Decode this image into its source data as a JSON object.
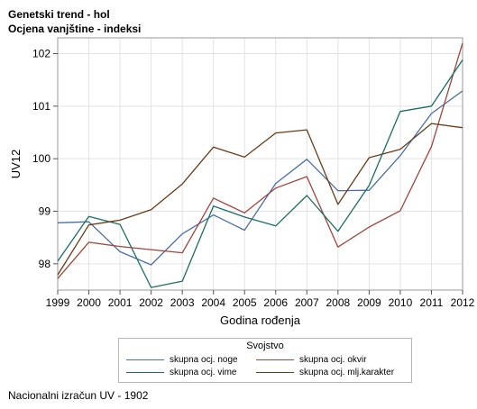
{
  "header": {
    "title": "Genetski trend - hol",
    "subtitle": "Ocjena vanjštine - indeksi"
  },
  "footer": {
    "note": "Nacionalni izračun UV - 1902"
  },
  "chart_data": {
    "type": "line",
    "xlabel": "Godina rođenja",
    "ylabel": "UV12",
    "x": [
      1999,
      2000,
      2001,
      2002,
      2003,
      2004,
      2005,
      2006,
      2007,
      2008,
      2009,
      2010,
      2011,
      2012
    ],
    "x_ticks": [
      "1999",
      "2000",
      "2001",
      "2002",
      "2003",
      "2004",
      "2005",
      "2006",
      "2007",
      "2008",
      "2009",
      "2010",
      "2011",
      "2012"
    ],
    "y_ticks": [
      "98",
      "99",
      "100",
      "101",
      "102"
    ],
    "xlim": [
      1999,
      2012
    ],
    "ylim": [
      97.5,
      102.3
    ],
    "grid": true,
    "legend": {
      "title": "Svojstvo",
      "placement": "bottom"
    },
    "series": [
      {
        "name": "skupna ocj. noge",
        "color": "#4a6fa5",
        "values": [
          98.78,
          98.8,
          98.23,
          97.98,
          98.57,
          98.93,
          98.64,
          99.53,
          99.99,
          99.39,
          99.4,
          100.06,
          100.86,
          101.29
        ]
      },
      {
        "name": "skupna ocj. okvir",
        "color": "#a0453a",
        "values": [
          97.72,
          98.41,
          98.33,
          98.27,
          98.21,
          99.25,
          98.97,
          99.44,
          99.66,
          98.32,
          98.7,
          99.01,
          100.23,
          102.2
        ]
      },
      {
        "name": "skupna ocj. vime",
        "color": "#1a6e63",
        "values": [
          98.05,
          98.9,
          98.75,
          97.55,
          97.67,
          99.1,
          98.89,
          98.72,
          99.3,
          98.62,
          99.49,
          100.9,
          101.0,
          101.88
        ]
      },
      {
        "name": "skupna ocj. mlj.karakter",
        "color": "#6b3c17",
        "values": [
          97.79,
          98.74,
          98.83,
          99.03,
          99.52,
          100.22,
          100.03,
          100.49,
          100.55,
          99.13,
          100.02,
          100.18,
          100.67,
          100.59
        ]
      }
    ]
  }
}
